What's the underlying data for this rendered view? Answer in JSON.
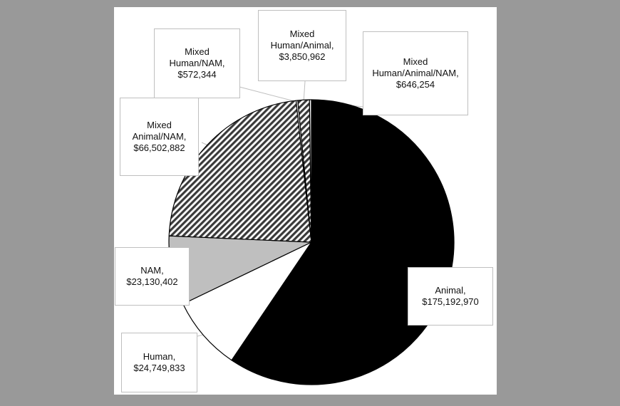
{
  "chart_data": {
    "type": "pie",
    "title": "",
    "start_angle_deg": 0,
    "direction": "clockwise",
    "slices": [
      {
        "label_lines": [
          "Animal,",
          "$175,192,970"
        ],
        "value": 175192970,
        "fill": "#000000",
        "pattern": "solid"
      },
      {
        "label_lines": [
          "Human,",
          "$24,749,833"
        ],
        "value": 24749833,
        "fill": "#ffffff",
        "pattern": "solid"
      },
      {
        "label_lines": [
          "NAM,",
          "$23,130,402"
        ],
        "value": 23130402,
        "fill": "#bfbfbf",
        "pattern": "solid"
      },
      {
        "label_lines": [
          "Mixed",
          "Animal/NAM,",
          "$66,502,882"
        ],
        "value": 66502882,
        "fill": "#404040",
        "pattern": "diagonal-hatch"
      },
      {
        "label_lines": [
          "Mixed",
          "Human/NAM,",
          "$572,344"
        ],
        "value": 572344,
        "fill": "#ffffff",
        "pattern": "solid"
      },
      {
        "label_lines": [
          "Mixed",
          "Human/Animal,",
          "$3,850,962"
        ],
        "value": 3850962,
        "fill": "#404040",
        "pattern": "diagonal-hatch"
      },
      {
        "label_lines": [
          "Mixed",
          "Human/Animal/NAM,",
          "$646,254"
        ],
        "value": 646254,
        "fill": "#ffffff",
        "pattern": "solid"
      }
    ]
  }
}
